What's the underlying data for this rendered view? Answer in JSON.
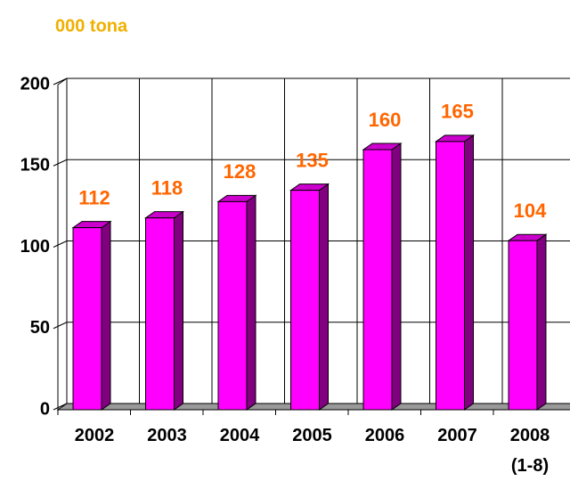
{
  "chart_data": {
    "type": "bar3d",
    "title": "000 tona",
    "categories": [
      "2002",
      "2003",
      "2004",
      "2005",
      "2006",
      "2007",
      "2008\n(1-8)"
    ],
    "values": [
      112,
      118,
      128,
      135,
      160,
      165,
      104
    ],
    "color": "#ff00ff",
    "ylim": [
      0,
      200
    ],
    "yticks": [
      0,
      50,
      100,
      150,
      200
    ],
    "grid": true
  }
}
